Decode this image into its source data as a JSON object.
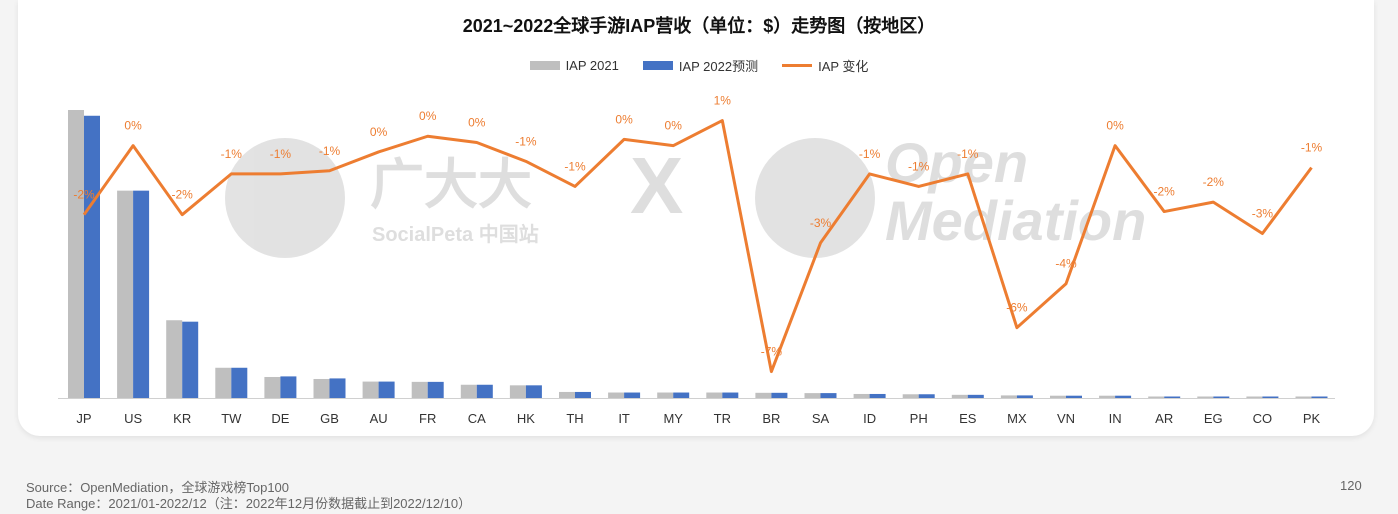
{
  "page": {
    "title": "2021~2022全球手游IAP营收（单位：$）走势图（按地区）",
    "source": "Source：OpenMediation，全球游戏榜Top100",
    "date_range": "Date Range：2021/01-2022/12（注：2022年12月份数据截止到2022/12/10）",
    "page_number": "120"
  },
  "watermark": {
    "brand1_cn": "广大大",
    "brand1_en": "SocialPeta 中国站",
    "cross": "X",
    "brand2_line1": "Open",
    "brand2_line2": "Mediation"
  },
  "colors": {
    "iap2021": "#bfbfbf",
    "iap2022": "#4472c4",
    "change_line": "#ed7d31"
  },
  "chart_data": {
    "type": "bar",
    "title": "2021~2022全球手游IAP营收（单位：$）走势图（按地区）",
    "categories": [
      "JP",
      "US",
      "KR",
      "TW",
      "DE",
      "GB",
      "AU",
      "FR",
      "CA",
      "HK",
      "TH",
      "IT",
      "MY",
      "TR",
      "BR",
      "SA",
      "ID",
      "PH",
      "ES",
      "MX",
      "VN",
      "IN",
      "AR",
      "EG",
      "CO",
      "PK"
    ],
    "series": [
      {
        "name": "IAP 2021",
        "type": "bar",
        "axis": "left",
        "values": [
          100,
          72,
          27,
          10.5,
          7.3,
          6.6,
          5.7,
          5.6,
          4.6,
          4.4,
          2.1,
          1.9,
          1.9,
          1.9,
          1.8,
          1.7,
          1.4,
          1.3,
          1.1,
          0.9,
          0.8,
          0.8,
          0.5,
          0.4,
          0.3,
          0.2
        ]
      },
      {
        "name": "IAP 2022预测",
        "type": "bar",
        "axis": "left",
        "values": [
          98,
          72,
          26.5,
          10.5,
          7.5,
          6.8,
          5.7,
          5.6,
          4.6,
          4.4,
          2.1,
          1.9,
          1.9,
          1.9,
          1.8,
          1.7,
          1.4,
          1.3,
          1.1,
          0.9,
          0.8,
          0.8,
          0.5,
          0.4,
          0.3,
          0.2
        ]
      },
      {
        "name": "IAP 变化",
        "type": "line",
        "axis": "right",
        "values": [
          -2,
          0,
          -2,
          -1,
          -1,
          -1,
          0,
          0,
          0,
          -1,
          -1,
          0,
          0,
          1,
          -7,
          -3,
          -1,
          -1,
          -1,
          -6,
          -4,
          0,
          -2,
          -2,
          -3,
          -1
        ],
        "labels": [
          "-2%",
          "0%",
          "-2%",
          "-1%",
          "-1%",
          "-1%",
          "0%",
          "0%",
          "0%",
          "-1%",
          "-1%",
          "0%",
          "0%",
          "1%",
          "-7%",
          "-3%",
          "-1%",
          "-1%",
          "-1%",
          "-6%",
          "-4%",
          "0%",
          "-2%",
          "-2%",
          "-3%",
          "-1%"
        ],
        "shape": [
          -2.2,
          0,
          -2.2,
          -0.9,
          -0.9,
          -0.8,
          -0.2,
          0.3,
          0.1,
          -0.5,
          -1.3,
          0.2,
          0,
          0.8,
          -7.2,
          -3.1,
          -0.9,
          -1.3,
          -0.9,
          -5.8,
          -4.4,
          0,
          -2.1,
          -1.8,
          -2.8,
          -0.7
        ]
      }
    ],
    "ylim_left": [
      0,
      100
    ],
    "ylim_right": [
      -7.5,
      1.2
    ],
    "xlabel": "",
    "ylabel": "",
    "grid": false,
    "legend_position": "top-center"
  }
}
